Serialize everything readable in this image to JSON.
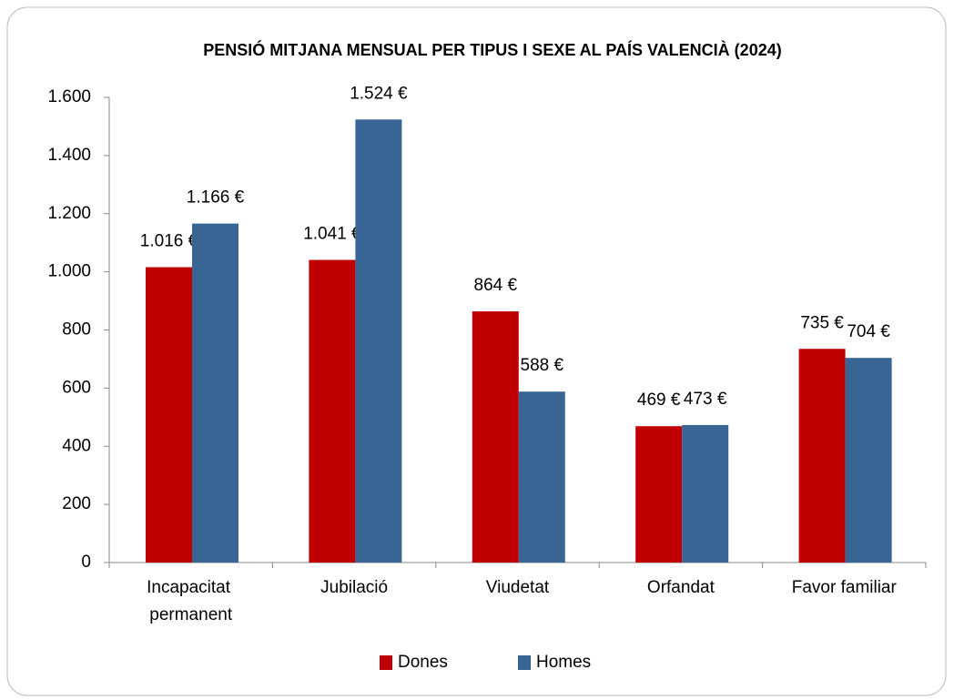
{
  "chart_data": {
    "type": "bar",
    "title": "PENSIÓ MITJANA MENSUAL PER TIPUS I SEXE AL PAÍS VALENCIÀ (2024)",
    "categories": [
      "Incapacitat permanent",
      "Jubilació",
      "Viudetat",
      "Orfandat",
      "Favor familiar"
    ],
    "series": [
      {
        "name": "Dones",
        "color": "#c00000",
        "values": [
          1016,
          1041,
          864,
          469,
          735
        ],
        "value_labels": [
          "1.016 €",
          "1.041 €",
          "864 €",
          "469 €",
          "735 €"
        ]
      },
      {
        "name": "Homes",
        "color": "#386594",
        "values": [
          1166,
          1524,
          588,
          473,
          704
        ],
        "value_labels": [
          "1.166 €",
          "1.524 €",
          "588 €",
          "473 €",
          "704 €"
        ]
      }
    ],
    "ylim": [
      0,
      1600
    ],
    "yticks": [
      0,
      200,
      400,
      600,
      800,
      {
        "value": 1000,
        "label": "1.000"
      },
      {
        "value": 1200,
        "label": "1.200"
      },
      {
        "value": 1400,
        "label": "1.400"
      },
      {
        "value": 1600,
        "label": "1.600"
      }
    ],
    "grid": false,
    "legend": "bottom"
  }
}
